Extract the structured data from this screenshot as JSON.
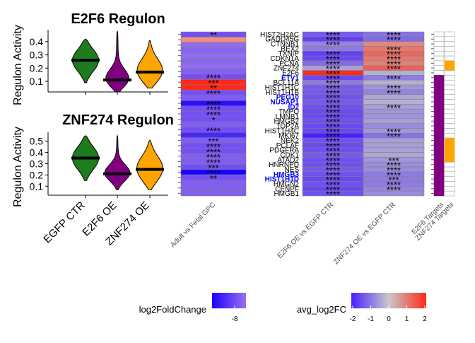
{
  "chart_data": [
    {
      "type": "violin",
      "title": "E2F6 Regulon",
      "ylabel": "Regulon Activity",
      "ylim": [
        0.02,
        0.49
      ],
      "yticks": [
        0.1,
        0.2,
        0.3,
        0.4
      ],
      "categories": [
        "EGFP CTR",
        "E2F6 OE",
        "ZNF274 OE"
      ],
      "colors": [
        "#1e7b1e",
        "#800080",
        "#ffa500"
      ],
      "medians": [
        0.26,
        0.11,
        0.17
      ],
      "ranges": [
        [
          0.09,
          0.42
        ],
        [
          0.02,
          0.48
        ],
        [
          0.05,
          0.41
        ]
      ]
    },
    {
      "type": "violin",
      "title": "ZNF274 Regulon",
      "ylabel": "Regulon Activity",
      "ylim": [
        0.02,
        0.58
      ],
      "yticks": [
        0.1,
        0.2,
        0.3,
        0.4,
        0.5
      ],
      "categories": [
        "EGFP CTR",
        "E2F6 OE",
        "ZNF274 OE"
      ],
      "colors": [
        "#1e7b1e",
        "#800080",
        "#ffa500"
      ],
      "medians": [
        0.35,
        0.21,
        0.25
      ],
      "ranges": [
        [
          0.15,
          0.55
        ],
        [
          0.07,
          0.55
        ],
        [
          0.07,
          0.51
        ]
      ]
    },
    {
      "type": "heatmap",
      "name": "adult-vs-fetal",
      "columns": [
        "Adult vs Fetal GPC"
      ],
      "values": [
        -7,
        -6.5,
        -6,
        -6.3,
        -6,
        -6.2,
        -6,
        -6.4,
        -7,
        -9,
        -8,
        -7,
        -6.5,
        -9.5,
        -7,
        -7,
        -7,
        -6.5,
        -7,
        -8.5,
        -6.5,
        -7,
        -7,
        -6.5,
        -6.5,
        -7,
        -10,
        -7,
        -6.5,
        -6.5,
        -6.5
      ],
      "overrides": {
        "1": "#f1907a",
        "9": "#ff2a1a",
        "10": "#ff2a1a"
      },
      "stars": [
        "**",
        "",
        "",
        "",
        "",
        "",
        "",
        "",
        "****",
        "***",
        "**",
        "****",
        "",
        "****",
        "****",
        "****",
        "*",
        "",
        "****",
        "",
        "***",
        "****",
        "****",
        "****",
        "****",
        "***",
        "****",
        "**",
        "",
        "",
        ""
      ]
    },
    {
      "type": "heatmap",
      "name": "oe-vs-egfp",
      "columns": [
        "E2F6 OE vs EGFP CTR",
        "ZNF274 OE vs EGFP CTR"
      ],
      "genes": [
        "HIST2H2AC",
        "GADD45G",
        "CTNNB1",
        "BEX2",
        "TXNIP",
        "CDKN1A",
        "PCNA",
        "ZNF274",
        "E2F6",
        "ETV1",
        "BCL11A",
        "HIST1H1C",
        "HIST1H1B",
        "PEG10",
        "NUSAP1",
        "ID2",
        "TMPO",
        "LMNB1",
        "HMGB2",
        "TOP2A",
        "HIST1H4C",
        "MKI67",
        "NEK2",
        "PCLAF",
        "PDGFRA",
        "CDK1",
        "ATAD2",
        "HNRNPD",
        "NES",
        "HMGB3",
        "HIST1H1D",
        "HMGN2",
        "CENPF",
        "HMGB1"
      ],
      "highlight": [
        "ETV1",
        "PEG10",
        "NUSAP1",
        "ID2",
        "HMGB3",
        "HIST1H1D"
      ],
      "col1": [
        -1.3,
        -1.6,
        -0.8,
        -0.9,
        -1.6,
        -1.5,
        -1.1,
        -0.5,
        2.4,
        -1.5,
        -0.9,
        -1.3,
        -1.3,
        -1.4,
        -1.3,
        -1.4,
        -1.5,
        -1.5,
        -1.4,
        -1.5,
        -1.5,
        -2.2,
        -1.4,
        -1.5,
        -1.4,
        -1.3,
        -1.4,
        -1.4,
        -1.3,
        -1.4,
        -1.5,
        -1.4,
        -1.5,
        -1.4
      ],
      "col2": [
        -1.0,
        -1.1,
        0.8,
        1.0,
        1.2,
        1.0,
        0.9,
        1.3,
        -0.3,
        -0.9,
        -0.3,
        -0.6,
        -0.8,
        -0.4,
        -0.3,
        -0.5,
        -0.6,
        -0.6,
        -0.5,
        -0.7,
        -0.6,
        -1.0,
        -0.5,
        -0.5,
        -0.5,
        -0.4,
        -0.6,
        -0.7,
        -0.7,
        -0.9,
        -0.9,
        -0.9,
        -0.8,
        -0.7
      ],
      "stars1": [
        "****",
        "****",
        "****",
        "",
        "****",
        "****",
        "****",
        "****",
        "****",
        "****",
        "****",
        "****",
        "****",
        "****",
        "****",
        "****",
        "****",
        "****",
        "****",
        "****",
        "****",
        "****",
        "****",
        "****",
        "****",
        "****",
        "****",
        "****",
        "****",
        "****",
        "****",
        "****",
        "****",
        "****"
      ],
      "stars2": [
        "****",
        "****",
        "",
        "****",
        "****",
        "****",
        "****",
        "****",
        "",
        "****",
        "",
        "****",
        "****",
        "",
        "",
        "****",
        "",
        "",
        "",
        "",
        "****",
        "****",
        "",
        "",
        "",
        "",
        "***",
        "****",
        "****",
        "****",
        "***",
        "****",
        "****",
        ""
      ]
    },
    {
      "type": "heatmap",
      "name": "targets",
      "columns": [
        "E2F6 Targets",
        "ZNF274 Targets"
      ],
      "colors": {
        "E2F6": "#800080",
        "ZNF274": "#ffa500"
      },
      "e2f6_from": 9,
      "znf274_rows": [
        6,
        7,
        22,
        23,
        24,
        25,
        26
      ]
    }
  ],
  "legends": {
    "log2fc": {
      "title": "log2FoldChange",
      "ticks": [
        "-8"
      ]
    },
    "avg": {
      "title": "avg_log2FC",
      "ticks": [
        "-2",
        "-1",
        "0",
        "1",
        "2"
      ]
    }
  }
}
